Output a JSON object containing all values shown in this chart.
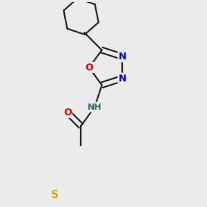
{
  "background_color": "#ebebeb",
  "bond_color": "#1a1a1a",
  "atom_colors": {
    "O": "#e00000",
    "N": "#0000cc",
    "S": "#ccaa00",
    "C": "#1a1a1a",
    "H": "#336666"
  },
  "font_size_atoms": 10,
  "fig_size": [
    3.0,
    3.0
  ],
  "dpi": 100
}
